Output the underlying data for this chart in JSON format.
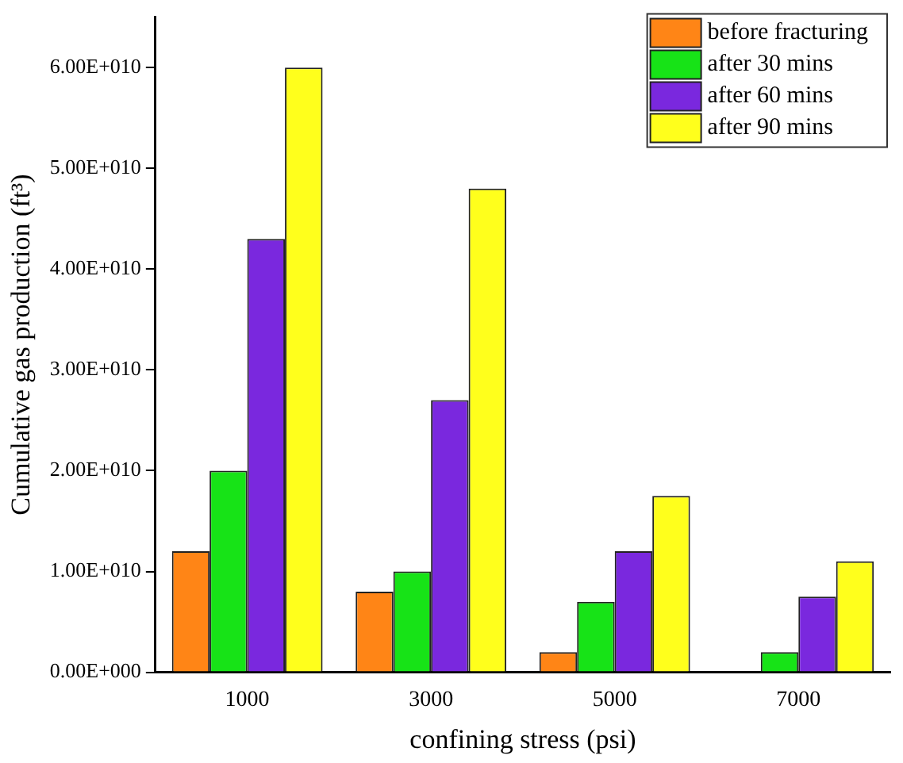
{
  "chart_data": {
    "type": "bar",
    "xlabel": "confining stress (psi)",
    "ylabel": "Cumulative gas production (ft³)",
    "categories": [
      "1000",
      "3000",
      "5000",
      "7000"
    ],
    "series": [
      {
        "name": "before fracturing",
        "color": "#ff8516",
        "values": [
          12000000000,
          8000000000,
          2000000000,
          0
        ]
      },
      {
        "name": "after 30 mins",
        "color": "#17e317",
        "values": [
          20000000000,
          10000000000,
          7000000000,
          2000000000
        ]
      },
      {
        "name": "after 60 mins",
        "color": "#7a28de",
        "values": [
          43000000000,
          27000000000,
          12000000000,
          7500000000
        ]
      },
      {
        "name": "after 90 mins",
        "color": "#ffff1c",
        "values": [
          60000000000,
          48000000000,
          17500000000,
          11000000000
        ]
      }
    ],
    "ylim": [
      0,
      65000000000
    ],
    "yticks": [
      {
        "value": 0,
        "label": "0.00E+000"
      },
      {
        "value": 10000000000,
        "label": "1.00E+010"
      },
      {
        "value": 20000000000,
        "label": "2.00E+010"
      },
      {
        "value": 30000000000,
        "label": "3.00E+010"
      },
      {
        "value": 40000000000,
        "label": "4.00E+010"
      },
      {
        "value": 50000000000,
        "label": "5.00E+010"
      },
      {
        "value": 60000000000,
        "label": "6.00E+010"
      }
    ],
    "legend": "top right",
    "grid": false
  }
}
